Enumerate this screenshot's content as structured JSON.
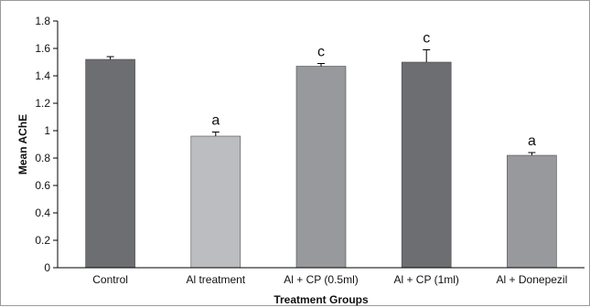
{
  "chart_data": {
    "type": "bar",
    "title": "",
    "xlabel": "Treatment Groups",
    "ylabel": "Mean AChE",
    "ylim": [
      0,
      1.8
    ],
    "yticks": [
      0,
      0.2,
      0.4,
      0.6,
      0.8,
      1,
      1.2,
      1.4,
      1.6,
      1.8
    ],
    "ytick_labels": [
      "0",
      "0.2",
      "0.4",
      "0.6",
      "0.8",
      "1",
      "1.2",
      "1.4",
      "1.6",
      "1.8"
    ],
    "grid": false,
    "legend": "none",
    "categories": [
      "Control",
      "Al treatment",
      "Al + CP (0.5ml)",
      "Al + CP (1ml)",
      "Al + Donepezil"
    ],
    "values": [
      1.52,
      0.96,
      1.47,
      1.5,
      0.82
    ],
    "errors": [
      0.02,
      0.03,
      0.02,
      0.09,
      0.02
    ],
    "significance_labels": [
      "",
      "a",
      "c",
      "c",
      "a"
    ],
    "bar_colors": [
      "#6d6e71",
      "#bcbdc0",
      "#98999c",
      "#6d6e71",
      "#98999c"
    ]
  }
}
